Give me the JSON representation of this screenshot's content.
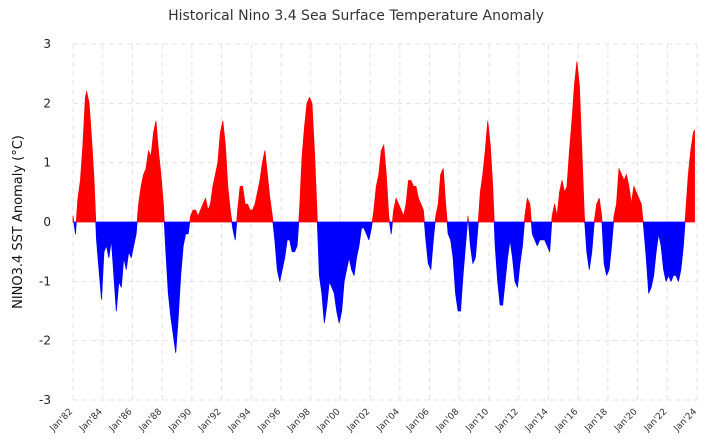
{
  "chart_data": {
    "type": "area",
    "title": "Historical Nino 3.4 Sea Surface Temperature Anomaly",
    "xlabel": "",
    "ylabel": "NINO3.4 SST Anomaly (°C)",
    "ylim": [
      -3,
      3
    ],
    "yticks": [
      -3,
      -2,
      -1,
      0,
      1,
      2,
      3
    ],
    "xlim": [
      "1982-01",
      "2024-01"
    ],
    "xticks": [
      "Jan'82",
      "Jan'84",
      "Jan'86",
      "Jan'88",
      "Jan'90",
      "Jan'92",
      "Jan'94",
      "Jan'96",
      "Jan'98",
      "Jan'00",
      "Jan'02",
      "Jan'04",
      "Jan'06",
      "Jan'08",
      "Jan'10",
      "Jan'12",
      "Jan'14",
      "Jan'16",
      "Jan'18",
      "Jan'20",
      "Jan'22",
      "Jan'24"
    ],
    "grid": true,
    "legend": "none",
    "colors": {
      "positive": "#ff0000",
      "negative": "#0000ff"
    },
    "series": [
      {
        "points": [
          [
            "1982-01",
            0.1
          ],
          [
            "1982-03",
            -0.2
          ],
          [
            "1982-05",
            0.4
          ],
          [
            "1982-07",
            0.7
          ],
          [
            "1982-09",
            1.3
          ],
          [
            "1982-11",
            2.1
          ],
          [
            "1982-12",
            2.2
          ],
          [
            "1983-02",
            2.0
          ],
          [
            "1983-04",
            1.4
          ],
          [
            "1983-06",
            0.7
          ],
          [
            "1983-08",
            -0.3
          ],
          [
            "1983-10",
            -0.8
          ],
          [
            "1983-12",
            -1.3
          ],
          [
            "1984-02",
            -0.5
          ],
          [
            "1984-04",
            -0.4
          ],
          [
            "1984-06",
            -0.6
          ],
          [
            "1984-08",
            -0.3
          ],
          [
            "1984-10",
            -0.9
          ],
          [
            "1984-12",
            -1.5
          ],
          [
            "1985-02",
            -1.0
          ],
          [
            "1985-04",
            -1.1
          ],
          [
            "1985-06",
            -0.6
          ],
          [
            "1985-08",
            -0.8
          ],
          [
            "1985-10",
            -0.5
          ],
          [
            "1985-12",
            -0.6
          ],
          [
            "1986-02",
            -0.4
          ],
          [
            "1986-04",
            -0.2
          ],
          [
            "1986-06",
            0.3
          ],
          [
            "1986-08",
            0.6
          ],
          [
            "1986-10",
            0.8
          ],
          [
            "1986-12",
            0.9
          ],
          [
            "1987-02",
            1.2
          ],
          [
            "1987-04",
            1.1
          ],
          [
            "1987-06",
            1.5
          ],
          [
            "1987-08",
            1.7
          ],
          [
            "1987-10",
            1.2
          ],
          [
            "1987-12",
            0.8
          ],
          [
            "1988-02",
            0.3
          ],
          [
            "1988-04",
            -0.5
          ],
          [
            "1988-06",
            -1.2
          ],
          [
            "1988-08",
            -1.6
          ],
          [
            "1988-10",
            -1.9
          ],
          [
            "1988-12",
            -2.2
          ],
          [
            "1989-02",
            -1.6
          ],
          [
            "1989-04",
            -0.9
          ],
          [
            "1989-06",
            -0.4
          ],
          [
            "1989-08",
            -0.2
          ],
          [
            "1989-10",
            -0.2
          ],
          [
            "1989-12",
            0.1
          ],
          [
            "1990-02",
            0.2
          ],
          [
            "1990-04",
            0.2
          ],
          [
            "1990-06",
            0.1
          ],
          [
            "1990-08",
            0.2
          ],
          [
            "1990-10",
            0.3
          ],
          [
            "1990-12",
            0.4
          ],
          [
            "1991-02",
            0.2
          ],
          [
            "1991-04",
            0.3
          ],
          [
            "1991-06",
            0.6
          ],
          [
            "1991-08",
            0.8
          ],
          [
            "1991-10",
            1.0
          ],
          [
            "1991-12",
            1.5
          ],
          [
            "1992-02",
            1.7
          ],
          [
            "1992-04",
            1.3
          ],
          [
            "1992-06",
            0.6
          ],
          [
            "1992-08",
            0.2
          ],
          [
            "1992-10",
            -0.1
          ],
          [
            "1992-12",
            -0.3
          ],
          [
            "1993-02",
            0.2
          ],
          [
            "1993-04",
            0.6
          ],
          [
            "1993-06",
            0.6
          ],
          [
            "1993-08",
            0.3
          ],
          [
            "1993-10",
            0.3
          ],
          [
            "1993-12",
            0.2
          ],
          [
            "1994-02",
            0.2
          ],
          [
            "1994-04",
            0.3
          ],
          [
            "1994-06",
            0.5
          ],
          [
            "1994-08",
            0.7
          ],
          [
            "1994-10",
            1.0
          ],
          [
            "1994-12",
            1.2
          ],
          [
            "1995-02",
            0.8
          ],
          [
            "1995-04",
            0.4
          ],
          [
            "1995-06",
            0.1
          ],
          [
            "1995-08",
            -0.3
          ],
          [
            "1995-10",
            -0.8
          ],
          [
            "1995-12",
            -1.0
          ],
          [
            "1996-02",
            -0.8
          ],
          [
            "1996-04",
            -0.6
          ],
          [
            "1996-06",
            -0.3
          ],
          [
            "1996-08",
            -0.3
          ],
          [
            "1996-10",
            -0.5
          ],
          [
            "1996-12",
            -0.5
          ],
          [
            "1997-02",
            -0.4
          ],
          [
            "1997-04",
            0.2
          ],
          [
            "1997-06",
            1.1
          ],
          [
            "1997-08",
            1.6
          ],
          [
            "1997-10",
            2.0
          ],
          [
            "1997-12",
            2.1
          ],
          [
            "1998-02",
            2.0
          ],
          [
            "1998-04",
            1.2
          ],
          [
            "1998-06",
            0.2
          ],
          [
            "1998-08",
            -0.9
          ],
          [
            "1998-10",
            -1.2
          ],
          [
            "1998-12",
            -1.7
          ],
          [
            "1999-02",
            -1.4
          ],
          [
            "1999-04",
            -1.0
          ],
          [
            "1999-06",
            -1.1
          ],
          [
            "1999-08",
            -1.2
          ],
          [
            "1999-10",
            -1.5
          ],
          [
            "1999-12",
            -1.7
          ],
          [
            "2000-02",
            -1.5
          ],
          [
            "2000-04",
            -1.0
          ],
          [
            "2000-06",
            -0.8
          ],
          [
            "2000-08",
            -0.6
          ],
          [
            "2000-10",
            -0.8
          ],
          [
            "2000-12",
            -0.9
          ],
          [
            "2001-02",
            -0.6
          ],
          [
            "2001-04",
            -0.4
          ],
          [
            "2001-06",
            -0.1
          ],
          [
            "2001-08",
            -0.1
          ],
          [
            "2001-10",
            -0.2
          ],
          [
            "2001-12",
            -0.3
          ],
          [
            "2002-02",
            -0.1
          ],
          [
            "2002-04",
            0.2
          ],
          [
            "2002-06",
            0.6
          ],
          [
            "2002-08",
            0.8
          ],
          [
            "2002-10",
            1.2
          ],
          [
            "2002-12",
            1.3
          ],
          [
            "2003-02",
            0.8
          ],
          [
            "2003-04",
            0.1
          ],
          [
            "2003-06",
            -0.2
          ],
          [
            "2003-08",
            0.2
          ],
          [
            "2003-10",
            0.4
          ],
          [
            "2003-12",
            0.3
          ],
          [
            "2004-02",
            0.2
          ],
          [
            "2004-04",
            0.1
          ],
          [
            "2004-06",
            0.3
          ],
          [
            "2004-08",
            0.7
          ],
          [
            "2004-10",
            0.7
          ],
          [
            "2004-12",
            0.6
          ],
          [
            "2005-02",
            0.6
          ],
          [
            "2005-04",
            0.4
          ],
          [
            "2005-06",
            0.3
          ],
          [
            "2005-08",
            0.2
          ],
          [
            "2005-10",
            -0.3
          ],
          [
            "2005-12",
            -0.7
          ],
          [
            "2006-02",
            -0.8
          ],
          [
            "2006-04",
            -0.3
          ],
          [
            "2006-06",
            0.1
          ],
          [
            "2006-08",
            0.3
          ],
          [
            "2006-10",
            0.8
          ],
          [
            "2006-12",
            0.9
          ],
          [
            "2007-02",
            0.3
          ],
          [
            "2007-04",
            -0.2
          ],
          [
            "2007-06",
            -0.3
          ],
          [
            "2007-08",
            -0.6
          ],
          [
            "2007-10",
            -1.2
          ],
          [
            "2007-12",
            -1.5
          ],
          [
            "2008-02",
            -1.5
          ],
          [
            "2008-04",
            -0.9
          ],
          [
            "2008-06",
            -0.4
          ],
          [
            "2008-08",
            0.1
          ],
          [
            "2008-10",
            -0.4
          ],
          [
            "2008-12",
            -0.7
          ],
          [
            "2009-02",
            -0.6
          ],
          [
            "2009-04",
            -0.1
          ],
          [
            "2009-06",
            0.5
          ],
          [
            "2009-08",
            0.8
          ],
          [
            "2009-10",
            1.2
          ],
          [
            "2009-12",
            1.7
          ],
          [
            "2010-02",
            1.3
          ],
          [
            "2010-04",
            0.6
          ],
          [
            "2010-06",
            -0.4
          ],
          [
            "2010-08",
            -1.0
          ],
          [
            "2010-10",
            -1.4
          ],
          [
            "2010-12",
            -1.4
          ],
          [
            "2011-02",
            -1.0
          ],
          [
            "2011-04",
            -0.6
          ],
          [
            "2011-06",
            -0.3
          ],
          [
            "2011-08",
            -0.6
          ],
          [
            "2011-10",
            -1.0
          ],
          [
            "2011-12",
            -1.1
          ],
          [
            "2012-02",
            -0.7
          ],
          [
            "2012-04",
            -0.4
          ],
          [
            "2012-06",
            0.1
          ],
          [
            "2012-08",
            0.4
          ],
          [
            "2012-10",
            0.3
          ],
          [
            "2012-12",
            -0.2
          ],
          [
            "2013-02",
            -0.3
          ],
          [
            "2013-04",
            -0.4
          ],
          [
            "2013-06",
            -0.3
          ],
          [
            "2013-08",
            -0.3
          ],
          [
            "2013-10",
            -0.3
          ],
          [
            "2013-12",
            -0.4
          ],
          [
            "2014-02",
            -0.5
          ],
          [
            "2014-04",
            0.1
          ],
          [
            "2014-06",
            0.3
          ],
          [
            "2014-08",
            0.1
          ],
          [
            "2014-10",
            0.5
          ],
          [
            "2014-12",
            0.7
          ],
          [
            "2015-02",
            0.5
          ],
          [
            "2015-04",
            0.6
          ],
          [
            "2015-06",
            1.2
          ],
          [
            "2015-08",
            1.7
          ],
          [
            "2015-10",
            2.3
          ],
          [
            "2015-12",
            2.7
          ],
          [
            "2016-02",
            2.3
          ],
          [
            "2016-04",
            1.2
          ],
          [
            "2016-06",
            0.1
          ],
          [
            "2016-08",
            -0.5
          ],
          [
            "2016-10",
            -0.8
          ],
          [
            "2016-12",
            -0.5
          ],
          [
            "2017-02",
            0.0
          ],
          [
            "2017-04",
            0.3
          ],
          [
            "2017-06",
            0.4
          ],
          [
            "2017-08",
            0.1
          ],
          [
            "2017-10",
            -0.7
          ],
          [
            "2017-12",
            -0.9
          ],
          [
            "2018-02",
            -0.8
          ],
          [
            "2018-04",
            -0.4
          ],
          [
            "2018-06",
            0.1
          ],
          [
            "2018-08",
            0.3
          ],
          [
            "2018-10",
            0.9
          ],
          [
            "2018-12",
            0.8
          ],
          [
            "2019-02",
            0.7
          ],
          [
            "2019-04",
            0.8
          ],
          [
            "2019-06",
            0.6
          ],
          [
            "2019-08",
            0.3
          ],
          [
            "2019-10",
            0.6
          ],
          [
            "2019-12",
            0.5
          ],
          [
            "2020-02",
            0.4
          ],
          [
            "2020-04",
            0.3
          ],
          [
            "2020-06",
            -0.1
          ],
          [
            "2020-08",
            -0.6
          ],
          [
            "2020-10",
            -1.2
          ],
          [
            "2020-12",
            -1.1
          ],
          [
            "2021-02",
            -0.9
          ],
          [
            "2021-04",
            -0.5
          ],
          [
            "2021-06",
            -0.2
          ],
          [
            "2021-08",
            -0.4
          ],
          [
            "2021-10",
            -0.8
          ],
          [
            "2021-12",
            -1.0
          ],
          [
            "2022-02",
            -0.9
          ],
          [
            "2022-04",
            -1.0
          ],
          [
            "2022-06",
            -0.9
          ],
          [
            "2022-08",
            -0.9
          ],
          [
            "2022-10",
            -1.0
          ],
          [
            "2022-12",
            -0.8
          ],
          [
            "2023-02",
            -0.4
          ],
          [
            "2023-04",
            0.2
          ],
          [
            "2023-06",
            0.8
          ],
          [
            "2023-08",
            1.2
          ],
          [
            "2023-10",
            1.5
          ],
          [
            "2023-11",
            1.55
          ]
        ]
      }
    ]
  }
}
